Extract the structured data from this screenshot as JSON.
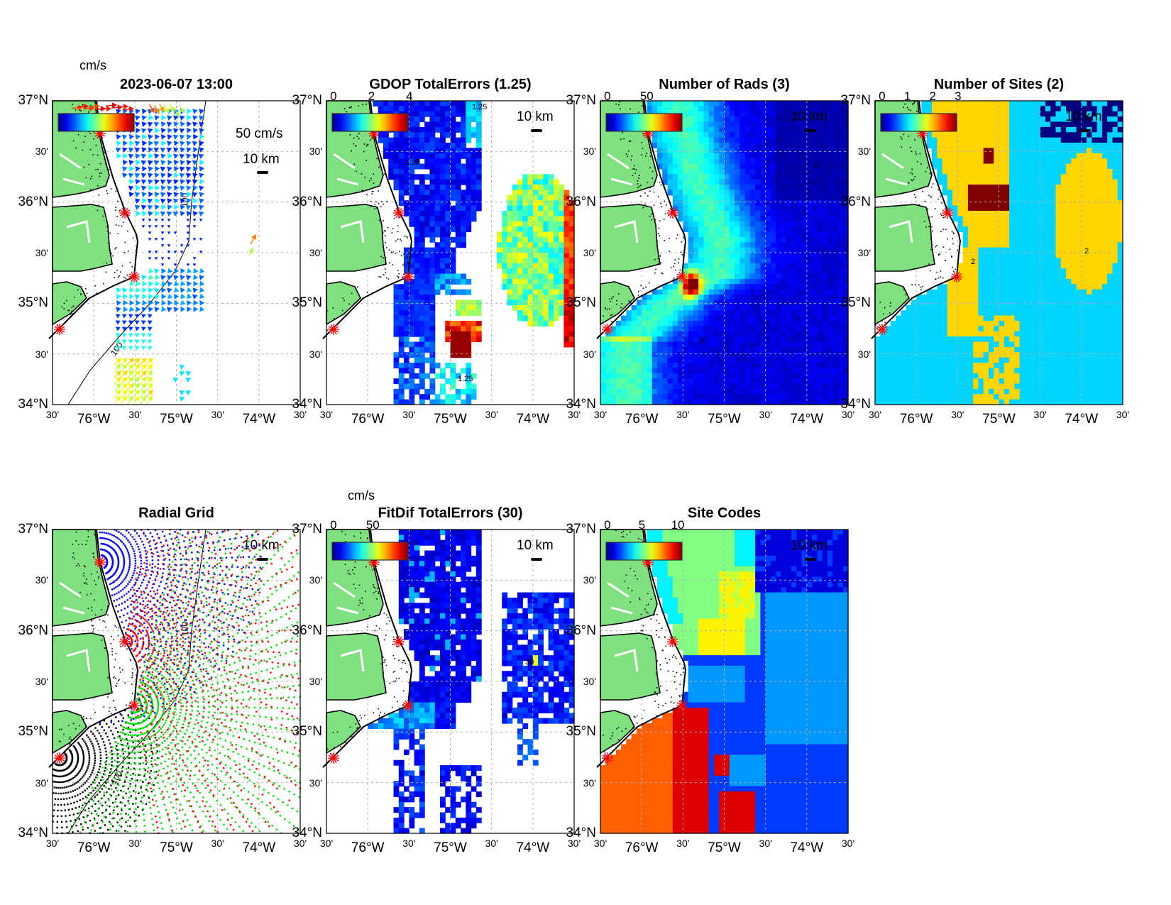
{
  "figure": {
    "vector_units": "cm/s",
    "vector_scale_label": "50 cm/s",
    "scale_bar_label": "10 km",
    "isobath_label": "100"
  },
  "axes": {
    "lat_ticks": [
      "37°N",
      "30'",
      "36°N",
      "30'",
      "35°N",
      "30'",
      "34°N"
    ],
    "lon_ticks": [
      "30'",
      "76°W",
      "30'",
      "75°W",
      "30'",
      "74°W",
      "30'"
    ]
  },
  "panels": [
    {
      "title": "2023-06-07 13:00",
      "kind": "vectors",
      "colorbar": {
        "units": "cm/s",
        "max": 100,
        "ticks": []
      }
    },
    {
      "title": "GDOP TotalErrors (1.25)",
      "kind": "gdop",
      "contour_label": "1.25",
      "colorbar": {
        "max": 4,
        "ticks": [
          {
            "label": "0",
            "value": 0
          },
          {
            "label": "2",
            "value": 2
          },
          {
            "label": "4",
            "value": 4
          }
        ]
      }
    },
    {
      "title": "Number of Rads (3)",
      "kind": "rads",
      "contour_label": "3",
      "colorbar": {
        "max": 100,
        "ticks": [
          {
            "label": "0",
            "value": 0
          },
          {
            "label": "50",
            "value": 50
          }
        ]
      }
    },
    {
      "title": "Number of Sites (2)",
      "kind": "sites",
      "contour_label": "2",
      "colorbar": {
        "max": 3,
        "ticks": [
          {
            "label": "0",
            "value": 0
          },
          {
            "label": "1",
            "value": 1
          },
          {
            "label": "2",
            "value": 2
          },
          {
            "label": "3",
            "value": 3
          }
        ]
      }
    },
    {
      "title": "Radial Grid",
      "kind": "radial"
    },
    {
      "title": "FitDif TotalErrors (30)",
      "kind": "fitdif",
      "contour_label": "30",
      "colorbar": {
        "units": "cm/s",
        "max": 100,
        "ticks": [
          {
            "label": "0",
            "value": 0
          },
          {
            "label": "50",
            "value": 50
          }
        ]
      }
    },
    {
      "title": "Site Codes",
      "kind": "codes",
      "colorbar": {
        "max": 11,
        "ticks": [
          {
            "label": "0",
            "value": 0
          },
          {
            "label": "5",
            "value": 5
          },
          {
            "label": "10",
            "value": 10
          }
        ]
      }
    }
  ],
  "colors": {
    "land": "#7fe07f",
    "site_marker": "#ff0000",
    "grid": "#b0b0b0",
    "radial_sites": [
      "#0000ff",
      "#ff0000",
      "#00e000",
      "#000000"
    ]
  }
}
